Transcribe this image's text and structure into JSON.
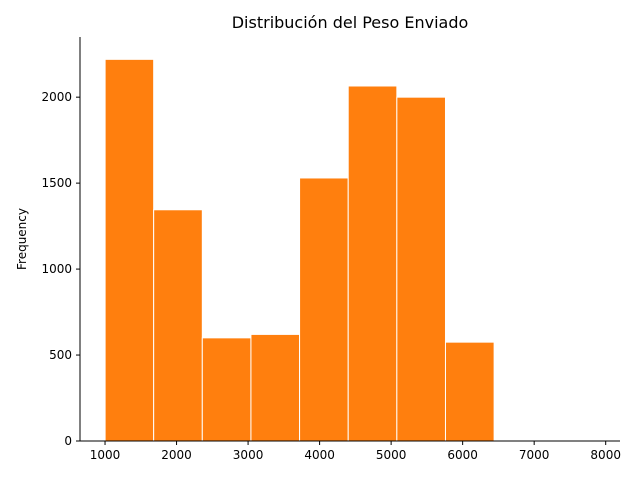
{
  "chart_data": {
    "type": "bar",
    "subtype": "histogram",
    "title": "Distribución del Peso Enviado",
    "xlabel": "",
    "ylabel": "Frequency",
    "bins": [
      {
        "start": 1001,
        "end": 1680,
        "count": 2220
      },
      {
        "start": 1680,
        "end": 2360,
        "count": 1345
      },
      {
        "start": 2360,
        "end": 3040,
        "count": 600
      },
      {
        "start": 3040,
        "end": 3720,
        "count": 620
      },
      {
        "start": 3720,
        "end": 4400,
        "count": 1530
      },
      {
        "start": 4400,
        "end": 5080,
        "count": 2065
      },
      {
        "start": 5080,
        "end": 5760,
        "count": 2000
      },
      {
        "start": 5760,
        "end": 6440,
        "count": 575
      }
    ],
    "xlim": [
      650,
      8200
    ],
    "ylim": [
      0,
      2350
    ],
    "xticks": [
      1000,
      2000,
      3000,
      4000,
      5000,
      6000,
      7000,
      8000
    ],
    "yticks": [
      0,
      500,
      1000,
      1500,
      2000
    ],
    "bar_color": "#ff7f0e",
    "edge_color": "#ffffff",
    "grid": false,
    "spines": [
      "left",
      "bottom"
    ]
  }
}
